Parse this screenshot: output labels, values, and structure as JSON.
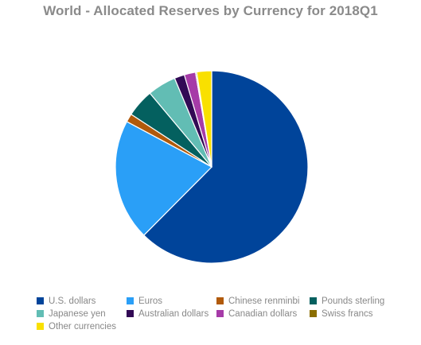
{
  "chart_data": {
    "type": "pie",
    "title": "World - Allocated Reserves by Currency for 2018Q1",
    "legend_position": "bottom",
    "slices": [
      {
        "name": "U.S. dollars",
        "value": 62.5,
        "color": "#00449a"
      },
      {
        "name": "Euros",
        "value": 20.4,
        "color": "#2a9ff7"
      },
      {
        "name": "Chinese renminbi",
        "value": 1.4,
        "color": "#b15a0b"
      },
      {
        "name": "Pounds sterling",
        "value": 4.7,
        "color": "#04605f"
      },
      {
        "name": "Japanese yen",
        "value": 4.8,
        "color": "#62bdb4"
      },
      {
        "name": "Australian dollars",
        "value": 1.7,
        "color": "#320a55"
      },
      {
        "name": "Canadian dollars",
        "value": 1.9,
        "color": "#a63ba8"
      },
      {
        "name": "Swiss francs",
        "value": 0.2,
        "color": "#8b6e00"
      },
      {
        "name": "Other currencies",
        "value": 2.5,
        "color": "#f9e000"
      }
    ]
  }
}
